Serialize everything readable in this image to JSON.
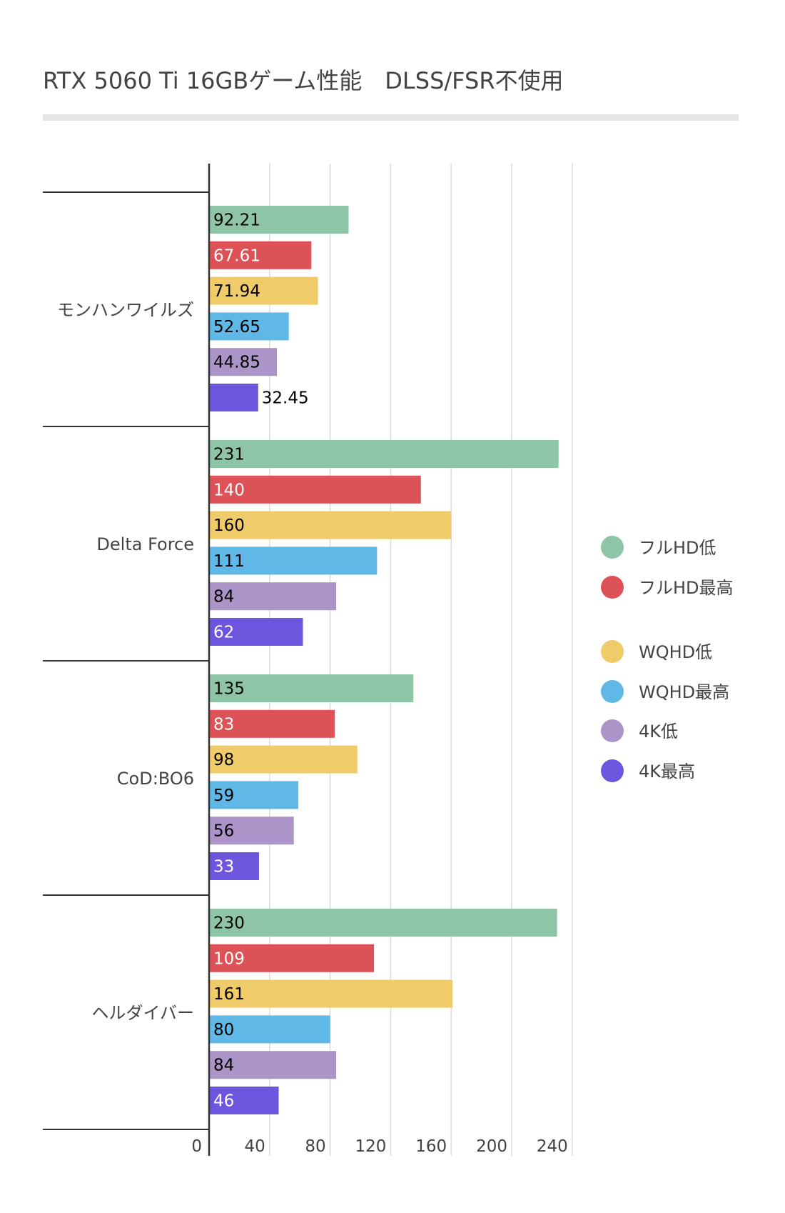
{
  "chart_data": {
    "type": "bar",
    "orientation": "horizontal",
    "title": "RTX 5060 Ti 16GBゲーム性能　DLSS/FSR不使用",
    "xlabel": "",
    "ylabel": "",
    "categories": [
      "モンハンワイルズ",
      "Delta Force",
      "CoD:BO6",
      "ヘルダイバー"
    ],
    "series": [
      {
        "name": "フルHD低",
        "color": "#8fc5a7",
        "values": [
          92.21,
          231,
          135,
          230
        ],
        "labels": [
          "92.21",
          "231",
          "135",
          "230"
        ],
        "label_color": "#000000"
      },
      {
        "name": "フルHD最高",
        "color": "#dd5257",
        "values": [
          67.61,
          140,
          83,
          109
        ],
        "labels": [
          "67.61",
          "140",
          "83",
          "109"
        ],
        "label_color": "#ffffff"
      },
      {
        "name": "WQHD低",
        "color": "#efcb69",
        "values": [
          71.94,
          160,
          98,
          161
        ],
        "labels": [
          "71.94",
          "160",
          "98",
          "161"
        ],
        "label_color": "#000000"
      },
      {
        "name": "WQHD最高",
        "color": "#60b8e6",
        "values": [
          52.65,
          111,
          59,
          80
        ],
        "labels": [
          "52.65",
          "111",
          "59",
          "80"
        ],
        "label_color": "#000000"
      },
      {
        "name": "4K低",
        "color": "#ac93c8",
        "values": [
          44.85,
          84,
          56,
          84
        ],
        "labels": [
          "44.85",
          "84",
          "56",
          "84"
        ],
        "label_color": "#000000"
      },
      {
        "name": "4K最高",
        "color": "#6e55de",
        "values": [
          32.45,
          62,
          33,
          46
        ],
        "labels": [
          "32.45",
          "62",
          "33",
          "46"
        ],
        "label_color": "#ffffff"
      }
    ],
    "xlim": [
      0,
      240
    ],
    "xticks": [
      0,
      40,
      80,
      120,
      160,
      200,
      240
    ],
    "grid": true,
    "legend": "right"
  }
}
